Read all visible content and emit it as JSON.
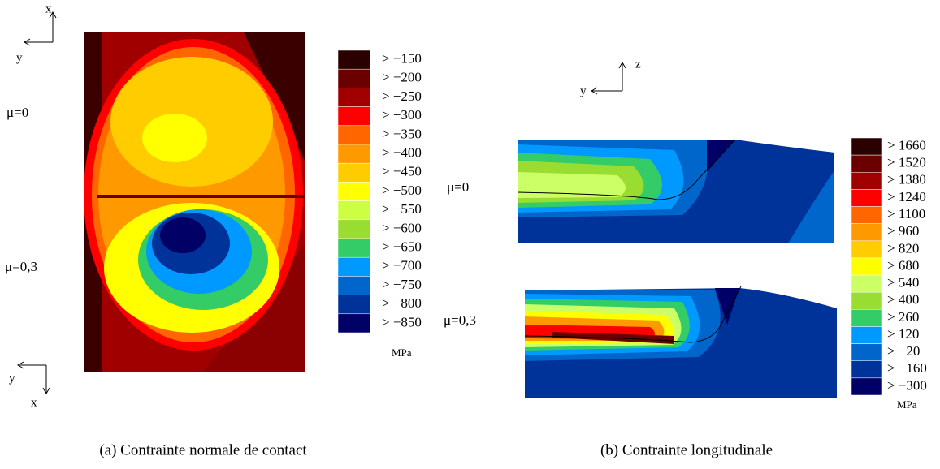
{
  "panel_a": {
    "axes_top": {
      "x": "x",
      "y": "y"
    },
    "axes_bottom": {
      "x": "x",
      "y": "y"
    },
    "labels": [
      "μ=0",
      "μ=0,3"
    ],
    "legend": [
      {
        "label": "> −150",
        "color": "#2a0000"
      },
      {
        "label": "> −200",
        "color": "#6b0000"
      },
      {
        "label": "> −250",
        "color": "#a00000"
      },
      {
        "label": "> −300",
        "color": "#ff0000"
      },
      {
        "label": "> −350",
        "color": "#ff6600"
      },
      {
        "label": "> −400",
        "color": "#ff9900"
      },
      {
        "label": "> −450",
        "color": "#ffcc00"
      },
      {
        "label": "> −500",
        "color": "#ffff00"
      },
      {
        "label": "> −550",
        "color": "#ccff44"
      },
      {
        "label": "> −600",
        "color": "#99dd33"
      },
      {
        "label": "> −650",
        "color": "#33cc66"
      },
      {
        "label": "> −700",
        "color": "#0099ff"
      },
      {
        "label": "> −750",
        "color": "#0066cc"
      },
      {
        "label": "> −800",
        "color": "#003399"
      },
      {
        "label": "> −850",
        "color": "#000066"
      }
    ],
    "unit": "MPa",
    "caption": "(a) Contrainte normale de contact"
  },
  "panel_b": {
    "axes": {
      "z": "z",
      "y": "y"
    },
    "labels": [
      "μ=0",
      "μ=0,3"
    ],
    "legend": [
      {
        "label": "> 1660",
        "color": "#2a0000"
      },
      {
        "label": "> 1520",
        "color": "#6b0000"
      },
      {
        "label": "> 1380",
        "color": "#a00000"
      },
      {
        "label": "> 1240",
        "color": "#ff0000"
      },
      {
        "label": "> 1100",
        "color": "#ff6600"
      },
      {
        "label": "> 960",
        "color": "#ff9900"
      },
      {
        "label": "> 820",
        "color": "#ffcc00"
      },
      {
        "label": "> 680",
        "color": "#ffff00"
      },
      {
        "label": "> 540",
        "color": "#ccff66"
      },
      {
        "label": "> 400",
        "color": "#99dd33"
      },
      {
        "label": "> 260",
        "color": "#33cc66"
      },
      {
        "label": "> 120",
        "color": "#0099ff"
      },
      {
        "label": "> −20",
        "color": "#0066cc"
      },
      {
        "label": "> −160",
        "color": "#003399"
      },
      {
        "label": "> −300",
        "color": "#000066"
      }
    ],
    "unit": "MPa",
    "caption": "(b) Contrainte longitudinale"
  }
}
